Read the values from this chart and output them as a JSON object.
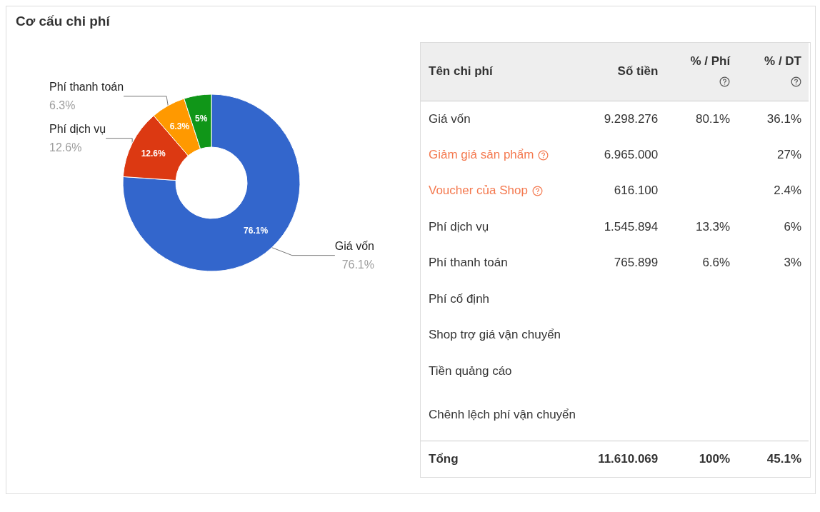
{
  "chart_data": [
    {
      "type": "donut",
      "title": "Cơ cấu chi phí",
      "categories": [
        "Giá vốn",
        "Phí dịch vụ",
        "Phí thanh toán",
        null
      ],
      "values": [
        76.1,
        12.6,
        6.3,
        5
      ],
      "colors": [
        "#3366cc",
        "#dc3912",
        "#ff9900",
        "#109618"
      ],
      "value_labels": [
        "76.1%",
        "12.6%",
        "6.3%",
        "5%"
      ],
      "legend": false
    },
    {
      "type": "other",
      "categories": [
        "Tên chi phí",
        "Số tiền",
        "% / Phí",
        "% / DT"
      ],
      "y_categories": [
        "Giá vốn",
        "Giảm giá sản phẩm",
        "Voucher của Shop",
        "Phí dịch vụ",
        "Phí thanh toán",
        "Phí cố định",
        "Shop trợ giá vận chuyển",
        "Tiền quảng cáo",
        "Chênh lệch phí vận chuyển",
        "Tổng"
      ],
      "cell_labels": [
        [
          "9.298.276",
          "80.1%",
          "36.1%"
        ],
        [
          "6.965.000",
          null,
          "27%"
        ],
        [
          "616.100",
          null,
          "2.4%"
        ],
        [
          "1.545.894",
          "13.3%",
          "6%"
        ],
        [
          "765.899",
          "6.6%",
          "3%"
        ],
        [
          null,
          null,
          null
        ],
        [
          null,
          null,
          null
        ],
        [
          null,
          null,
          null
        ],
        [
          null,
          null,
          null
        ],
        [
          "11.610.069",
          "100%",
          "45.1%"
        ]
      ],
      "colors": [
        null,
        "#f4794f",
        "#f4794f",
        null,
        null,
        null,
        null,
        null,
        null,
        null
      ]
    }
  ]
}
